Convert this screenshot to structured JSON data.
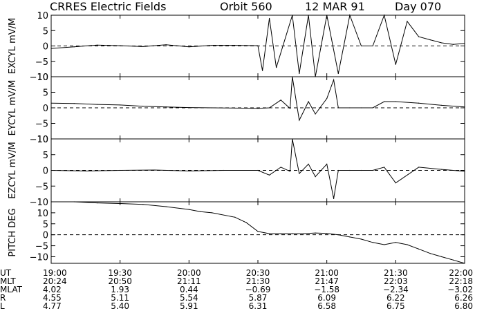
{
  "header": {
    "title": "CRRES Electric Fields",
    "orbit": "Orbit 560",
    "date": "12 MAR 91",
    "day": "Day 070"
  },
  "chart_data": [
    {
      "type": "line",
      "ylabel": "EXCYL mV/M",
      "ylim": [
        -10,
        10
      ],
      "yticks": [
        -10,
        -5,
        0,
        5,
        10
      ],
      "zero_line": "dashed",
      "x": [
        "19:00",
        "19:10",
        "19:20",
        "19:30",
        "19:40",
        "19:50",
        "20:00",
        "20:10",
        "20:20",
        "20:30",
        "20:32",
        "20:35",
        "20:38",
        "20:45",
        "20:48",
        "20:52",
        "20:55",
        "21:00",
        "21:05",
        "21:10",
        "21:15",
        "21:20",
        "21:25",
        "21:30",
        "21:35",
        "21:40",
        "21:45",
        "21:50",
        "21:55",
        "22:00"
      ],
      "values": [
        -0.8,
        -0.3,
        0.3,
        0.1,
        -0.2,
        0.4,
        -0.3,
        0.2,
        0.2,
        0.1,
        -8,
        9,
        -7,
        10,
        -9,
        10,
        -10,
        10,
        -9,
        10,
        0,
        0,
        10,
        -6,
        8,
        3,
        2,
        1,
        0.5,
        0.8
      ]
    },
    {
      "type": "line",
      "ylabel": "EYCYL mV/M",
      "ylim": [
        -10,
        10
      ],
      "yticks": [
        -10,
        -5,
        0,
        5,
        10
      ],
      "zero_line": "dashed",
      "x": [
        "19:00",
        "19:10",
        "19:20",
        "19:30",
        "19:40",
        "19:50",
        "20:00",
        "20:10",
        "20:20",
        "20:30",
        "20:35",
        "20:40",
        "20:44",
        "20:45",
        "20:48",
        "20:52",
        "20:55",
        "21:00",
        "21:03",
        "21:05",
        "21:10",
        "21:15",
        "21:20",
        "21:25",
        "21:30",
        "21:40",
        "21:50",
        "22:00"
      ],
      "values": [
        1.5,
        1.4,
        1.1,
        0.9,
        0.5,
        0.3,
        0.1,
        0,
        -0.1,
        -0.2,
        0,
        2.5,
        -0.2,
        10,
        -4,
        2,
        -2,
        3,
        9,
        0,
        0,
        0,
        0,
        2,
        2,
        1.5,
        0.8,
        0.3
      ]
    },
    {
      "type": "line",
      "ylabel": "EZCYL mV/M",
      "ylim": [
        -10,
        10
      ],
      "yticks": [
        -10,
        -5,
        0,
        5,
        10
      ],
      "zero_line": "dashed",
      "x": [
        "19:00",
        "19:15",
        "19:30",
        "19:45",
        "20:00",
        "20:15",
        "20:30",
        "20:35",
        "20:40",
        "20:44",
        "20:45",
        "20:48",
        "20:52",
        "20:55",
        "21:00",
        "21:03",
        "21:05",
        "21:10",
        "21:15",
        "21:20",
        "21:25",
        "21:30",
        "21:40",
        "21:50",
        "22:00"
      ],
      "values": [
        0,
        -0.2,
        0,
        0.1,
        -0.2,
        0,
        0,
        -1.5,
        1,
        -0.3,
        10,
        -1,
        2,
        -2,
        2,
        -9,
        0,
        0,
        0,
        0,
        1,
        -4,
        1,
        0.3,
        -0.3
      ]
    },
    {
      "type": "line",
      "ylabel": "PITCH DEG",
      "ylim": [
        -13,
        15
      ],
      "yticks": [
        -10,
        -5,
        0,
        5,
        10
      ],
      "zero_line": "dashed",
      "x": [
        "19:00",
        "19:10",
        "19:20",
        "19:30",
        "19:40",
        "19:50",
        "20:00",
        "20:05",
        "20:10",
        "20:20",
        "20:25",
        "20:30",
        "20:35",
        "20:40",
        "20:45",
        "20:50",
        "20:55",
        "21:00",
        "21:05",
        "21:10",
        "21:15",
        "21:20",
        "21:25",
        "21:30",
        "21:35",
        "21:40",
        "21:45",
        "21:50",
        "21:55",
        "22:00"
      ],
      "values": [
        15,
        15,
        14.5,
        14.2,
        13.8,
        12.8,
        11.5,
        10.5,
        10,
        8,
        5.5,
        1.5,
        0.5,
        0.5,
        0.5,
        0.5,
        0.8,
        0.6,
        0,
        -1,
        -2,
        -3.5,
        -4.5,
        -3.5,
        -4.5,
        -6.5,
        -8.5,
        -10,
        -11.5,
        -13
      ]
    }
  ],
  "x_axis": {
    "ticks": [
      "19:00",
      "19:30",
      "20:00",
      "20:30",
      "21:00",
      "21:30",
      "22:00"
    ],
    "rows": [
      {
        "label": "UT",
        "values": [
          "19:00",
          "19:30",
          "20:00",
          "20:30",
          "21:00",
          "21:30",
          "22:00"
        ]
      },
      {
        "label": "MLT",
        "values": [
          "20:24",
          "20:50",
          "21:11",
          "21:30",
          "21:47",
          "22:03",
          "22:18"
        ]
      },
      {
        "label": "MLAT",
        "values": [
          "4.02",
          "1.93",
          "0.44",
          "−0.69",
          "−1.58",
          "−2.34",
          "−3.02"
        ]
      },
      {
        "label": "R",
        "values": [
          "4.55",
          "5.11",
          "5.54",
          "5.87",
          "6.09",
          "6.22",
          "6.26"
        ]
      },
      {
        "label": "L",
        "values": [
          "4.77",
          "5.40",
          "5.91",
          "6.31",
          "6.58",
          "6.75",
          "6.80"
        ]
      }
    ]
  }
}
